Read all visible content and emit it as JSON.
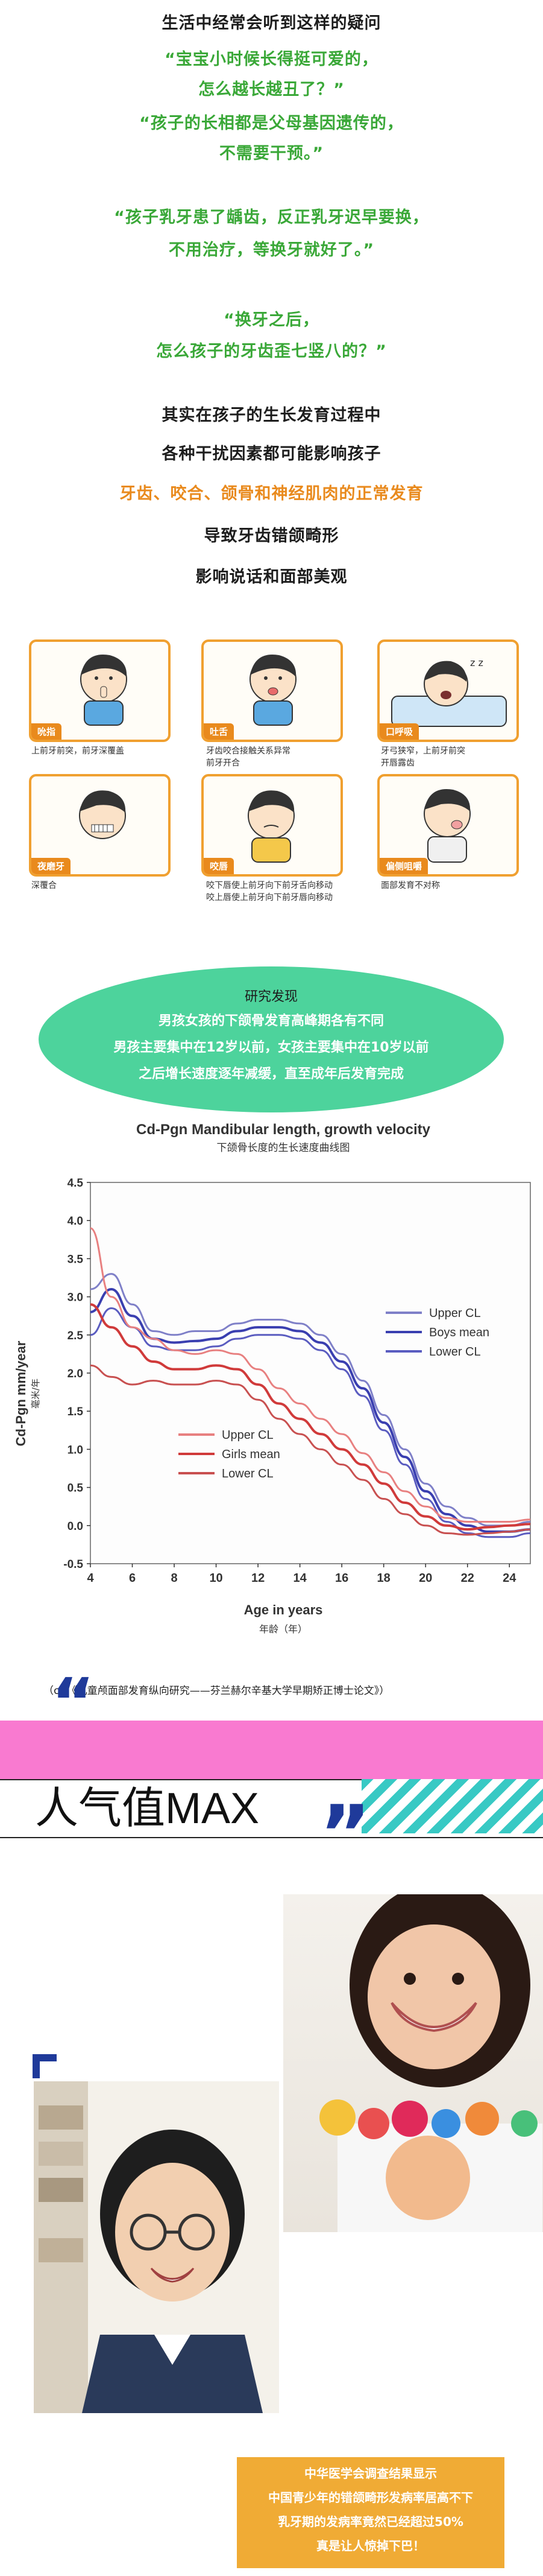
{
  "intro": {
    "l1": "生活中经常会听到这样的疑问",
    "l2": "“宝宝小时候长得挺可爱的，",
    "l3": "怎么越长越丑了？”",
    "l4": "“孩子的长相都是父母基因遗传的，",
    "l5": "不需要干预。”",
    "l6": "“孩子乳牙患了龋齿，反正乳牙迟早要换，",
    "l7": "不用治疗，等换牙就好了。”",
    "l8": "“换牙之后，",
    "l9": "怎么孩子的牙齿歪七竖八的？”"
  },
  "factors": {
    "l1": "其实在孩子的生长发育过程中",
    "l2": "各种干扰因素都可能影响孩子",
    "l3": "牙齿、咬合、颌骨和神经肌肉的正常发育",
    "l4": "导致牙齿错颌畸形",
    "l5": "影响说话和面部美观"
  },
  "habits": [
    {
      "tag": "吮指",
      "caption1": "上前牙前突，前牙深覆盖",
      "caption2": ""
    },
    {
      "tag": "吐舌",
      "caption1": "牙齿咬合接触关系异常",
      "caption2": "前牙开合"
    },
    {
      "tag": "口呼吸",
      "caption1": "牙弓狭窄，上前牙前突",
      "caption2": "开唇露齿"
    },
    {
      "tag": "夜磨牙",
      "caption1": "深覆合",
      "caption2": ""
    },
    {
      "tag": "咬唇",
      "caption1": "咬下唇使上前牙向下前牙舌向移动",
      "caption2": "咬上唇使上前牙向下前牙唇向移动"
    },
    {
      "tag": "偏侧咀嚼",
      "caption1": "面部发育不对称",
      "caption2": ""
    }
  ],
  "research": {
    "title": "研究发现",
    "l1": "男孩女孩的下颌骨发育高峰期各有不同",
    "l2": "男孩主要集中在12岁以前，女孩主要集中在10岁以前",
    "l3": "之后增长速度逐年减缓，直至成年后发育完成"
  },
  "chart_data": {
    "type": "line",
    "title": "Cd-Pgn Mandibular length, growth velocity",
    "subtitle": "下颌骨长度的生长速度曲线图",
    "xlabel": "Age in years",
    "xlabel_cn": "年龄（年）",
    "ylabel": "Cd-Pgn mm/year",
    "ylabel_cn": "毫米/年",
    "xlim": [
      4,
      25
    ],
    "ylim": [
      -0.5,
      4.5
    ],
    "x_ticks": [
      4,
      6,
      8,
      10,
      12,
      14,
      16,
      18,
      20,
      22,
      24
    ],
    "y_ticks": [
      -0.5,
      0.0,
      0.5,
      1.0,
      1.5,
      2.0,
      2.5,
      3.0,
      3.5,
      4.0,
      4.5
    ],
    "series": [
      {
        "name": "Upper CL",
        "group": "boys",
        "color": "#7f80c8",
        "x": [
          4,
          5,
          6,
          7,
          8,
          9,
          10,
          11,
          12,
          13,
          14,
          15,
          16,
          17,
          18,
          19,
          20,
          21,
          22,
          23,
          24,
          25
        ],
        "values": [
          3.1,
          3.3,
          2.9,
          2.55,
          2.5,
          2.55,
          2.55,
          2.65,
          2.7,
          2.7,
          2.65,
          2.5,
          2.25,
          1.9,
          1.45,
          1.0,
          0.55,
          0.25,
          0.1,
          0.0,
          0.0,
          0.05
        ]
      },
      {
        "name": "Boys mean",
        "group": "boys",
        "color": "#3a3fb0",
        "x": [
          4,
          5,
          6,
          7,
          8,
          9,
          10,
          11,
          12,
          13,
          14,
          15,
          16,
          17,
          18,
          19,
          20,
          21,
          22,
          23,
          24,
          25
        ],
        "values": [
          2.8,
          3.1,
          2.75,
          2.45,
          2.4,
          2.42,
          2.45,
          2.55,
          2.6,
          2.6,
          2.55,
          2.4,
          2.15,
          1.8,
          1.35,
          0.9,
          0.45,
          0.15,
          0.0,
          -0.08,
          -0.08,
          -0.05
        ]
      },
      {
        "name": "Lower CL",
        "group": "boys",
        "color": "#5a5cc0",
        "x": [
          4,
          5,
          6,
          7,
          8,
          9,
          10,
          11,
          12,
          13,
          14,
          15,
          16,
          17,
          18,
          19,
          20,
          21,
          22,
          23,
          24,
          25
        ],
        "values": [
          2.5,
          2.85,
          2.6,
          2.35,
          2.3,
          2.3,
          2.35,
          2.45,
          2.5,
          2.5,
          2.45,
          2.3,
          2.05,
          1.7,
          1.25,
          0.8,
          0.35,
          0.05,
          -0.1,
          -0.15,
          -0.15,
          -0.1
        ]
      },
      {
        "name": "Upper CL",
        "group": "girls",
        "color": "#e88080",
        "x": [
          4,
          5,
          6,
          7,
          8,
          9,
          10,
          11,
          12,
          13,
          14,
          15,
          16,
          17,
          18,
          19,
          20,
          21,
          22,
          23,
          24,
          25
        ],
        "values": [
          3.9,
          3.0,
          2.6,
          2.45,
          2.3,
          2.25,
          2.3,
          2.25,
          2.05,
          1.8,
          1.6,
          1.4,
          1.2,
          0.95,
          0.7,
          0.45,
          0.25,
          0.1,
          0.05,
          0.05,
          0.05,
          0.08
        ]
      },
      {
        "name": "Girls mean",
        "group": "girls",
        "color": "#d03a3a",
        "x": [
          4,
          5,
          6,
          7,
          8,
          9,
          10,
          11,
          12,
          13,
          14,
          15,
          16,
          17,
          18,
          19,
          20,
          21,
          22,
          23,
          24,
          25
        ],
        "values": [
          2.9,
          2.6,
          2.35,
          2.15,
          2.05,
          2.05,
          2.1,
          2.05,
          1.85,
          1.6,
          1.4,
          1.2,
          1.0,
          0.8,
          0.55,
          0.3,
          0.12,
          0.0,
          -0.05,
          -0.02,
          0.0,
          0.02
        ]
      },
      {
        "name": "Lower CL",
        "group": "girls",
        "color": "#c85050",
        "x": [
          4,
          5,
          6,
          7,
          8,
          9,
          10,
          11,
          12,
          13,
          14,
          15,
          16,
          17,
          18,
          19,
          20,
          21,
          22,
          23,
          24,
          25
        ],
        "values": [
          2.1,
          1.95,
          1.85,
          1.9,
          1.85,
          1.85,
          1.9,
          1.85,
          1.65,
          1.4,
          1.2,
          1.0,
          0.8,
          0.6,
          0.35,
          0.15,
          0.0,
          -0.1,
          -0.12,
          -0.1,
          -0.08,
          -0.05
        ]
      }
    ],
    "legend": "right"
  },
  "citation": "（cr:《儿童颅面部发育纵向研究——芬兰赫尔辛基大学早期矫正博士论文》）",
  "banner": {
    "title": "人气值MAX"
  },
  "stat": {
    "l1": "中华医学会调查结果显示",
    "l2": "中国青少年的错颌畸形发病率居高不下",
    "l3": "乳牙期的发病率竟然已经超过50%",
    "l4": "真是让人惊掉下巴！"
  },
  "colors": {
    "green": "#3aa838",
    "orange": "#e98a1d",
    "mint": "#4dd39c",
    "pink": "#f97ad0",
    "cyan": "#38c9c4",
    "navy": "#1f3a9a"
  }
}
